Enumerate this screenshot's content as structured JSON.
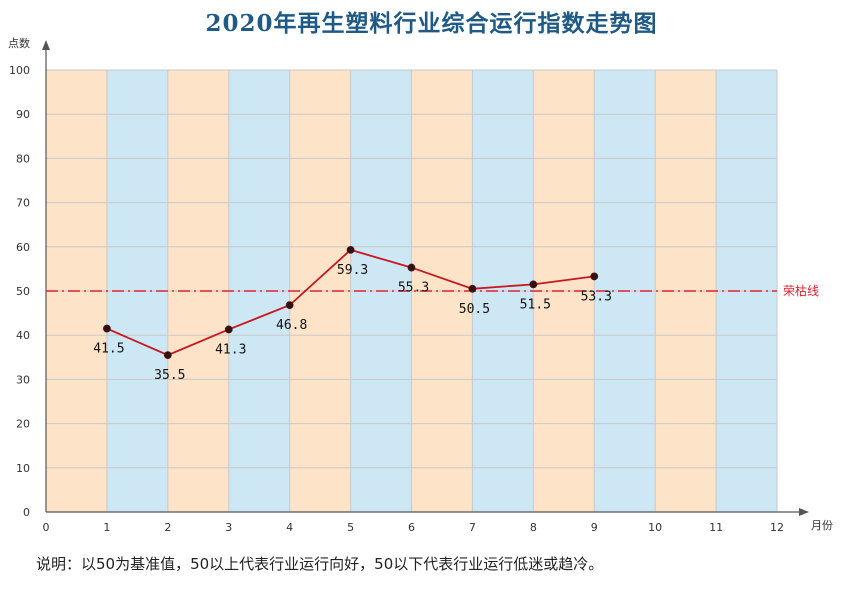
{
  "chart_data": {
    "type": "line",
    "title": "2020年再生塑料行业综合运行指数走势图",
    "xlabel": "月份",
    "ylabel": "点数",
    "xlim": [
      0,
      12
    ],
    "ylim": [
      0,
      100
    ],
    "x_ticks": [
      0,
      1,
      2,
      3,
      4,
      5,
      6,
      7,
      8,
      9,
      10,
      11,
      12
    ],
    "y_ticks": [
      0,
      10,
      20,
      30,
      40,
      50,
      60,
      70,
      80,
      90,
      100
    ],
    "grid": true,
    "background_bands": [
      "#fde3c8",
      "#cde7f4"
    ],
    "series": [
      {
        "x": [
          1,
          2,
          3,
          4,
          5,
          6,
          7,
          8,
          9
        ],
        "values": [
          41.5,
          35.5,
          41.3,
          46.8,
          59.3,
          55.3,
          50.5,
          51.5,
          53.3
        ],
        "labels": [
          "41.5",
          "35.5",
          "41.3",
          "46.8",
          "59.3",
          "55.3",
          "50.5",
          "51.5",
          "53.3"
        ],
        "color": "#c8181e"
      }
    ],
    "reference_line": {
      "y": 50,
      "label": "荣枯线",
      "color": "#e0202e"
    }
  },
  "footnote": "说明：以50为基准值，50以上代表行业运行向好，50以下代表行业运行低迷或趋冷。"
}
